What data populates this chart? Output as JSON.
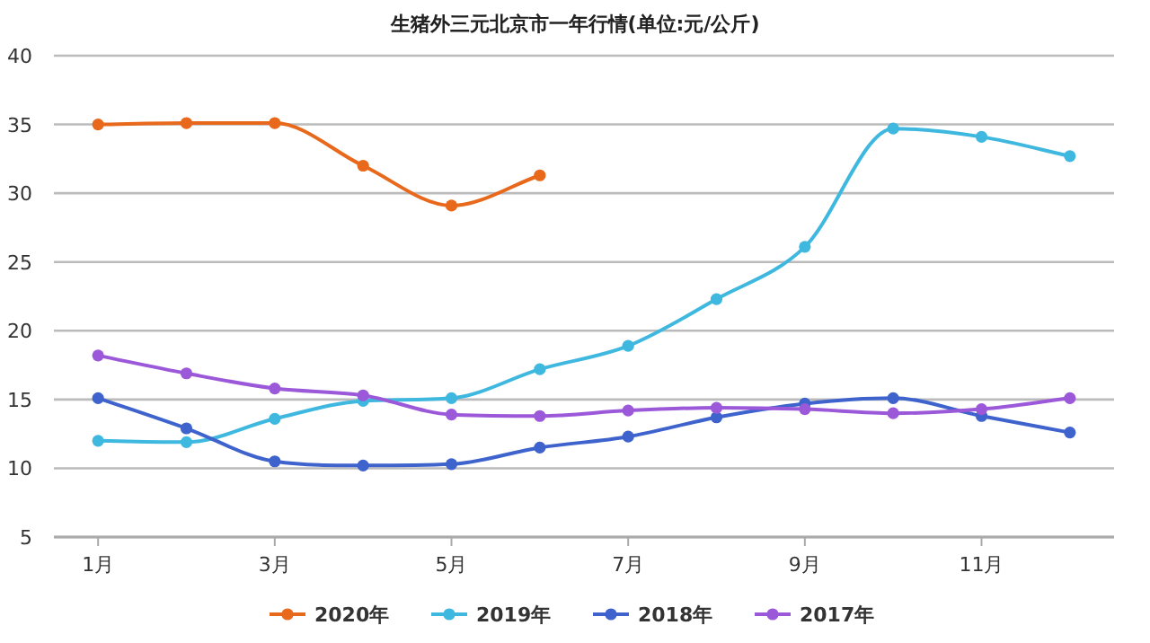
{
  "chart_data": {
    "type": "line",
    "title": "生猪外三元北京市一年行情(单位:元/公斤)",
    "categories": [
      "1月",
      null,
      "3月",
      null,
      "5月",
      null,
      "7月",
      null,
      "9月",
      null,
      "11月",
      null
    ],
    "series": [
      {
        "name": "2020年",
        "color": "#e8681c",
        "values": [
          35.0,
          35.1,
          35.1,
          32.0,
          29.1,
          31.3,
          null,
          null,
          null,
          null,
          null,
          null
        ]
      },
      {
        "name": "2019年",
        "color": "#3fb8e0",
        "values": [
          12.0,
          11.9,
          13.6,
          14.9,
          15.1,
          17.2,
          18.9,
          22.3,
          26.1,
          34.7,
          34.1,
          32.7
        ]
      },
      {
        "name": "2018年",
        "color": "#3f63cc",
        "values": [
          15.1,
          12.9,
          10.5,
          10.2,
          10.3,
          11.5,
          12.3,
          13.7,
          14.7,
          15.1,
          13.8,
          12.6
        ]
      },
      {
        "name": "2017年",
        "color": "#9b59d9",
        "values": [
          18.2,
          16.9,
          15.8,
          15.3,
          13.9,
          13.8,
          14.2,
          14.4,
          14.3,
          14.0,
          14.3,
          15.1
        ]
      }
    ],
    "ylim": [
      5,
      40
    ],
    "yticks": [
      5,
      10,
      15,
      20,
      25,
      30,
      35,
      40
    ],
    "grid": "y",
    "legend": "bottom",
    "marker": "circle",
    "line_style": "solid"
  }
}
